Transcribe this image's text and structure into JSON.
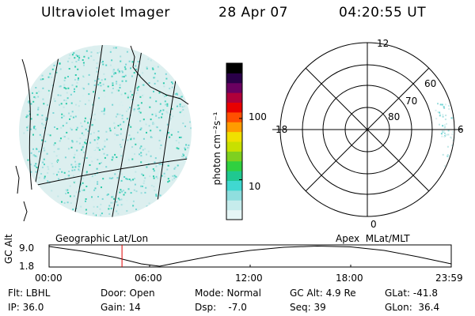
{
  "header": {
    "instrument": "Ultraviolet Imager",
    "date": "28 Apr 07",
    "time": "04:20:55 UT"
  },
  "colorbar": {
    "unit_label": "photon cm⁻²s⁻¹",
    "ticks": [
      {
        "label": "100",
        "value": 100
      },
      {
        "label": "10",
        "value": 10
      }
    ],
    "colors": [
      "#e6f6f6",
      "#c6ecec",
      "#8fdede",
      "#40d8d0",
      "#20c890",
      "#30d040",
      "#7ed020",
      "#c8e000",
      "#f0e000",
      "#ff9c00",
      "#ff5000",
      "#e80000",
      "#b0003a",
      "#6a0060",
      "#2a0048",
      "#000000"
    ]
  },
  "geo_panel": {
    "caption": "Geographic Lat/Lon"
  },
  "polar_panel": {
    "caption": "Apex  MLat/MLT",
    "mlt_labels": {
      "top": "12",
      "left": "18",
      "right": "6",
      "bottom": "0"
    },
    "lat_labels": [
      {
        "label": "60",
        "lat": 60
      },
      {
        "label": "70",
        "lat": 70
      },
      {
        "label": "80",
        "lat": 80
      }
    ]
  },
  "altitude_plot": {
    "ylabel": "GC Alt",
    "y_ticks": [
      "9.0",
      "1.8"
    ],
    "x_ticks": [
      "00:00",
      "06:00",
      "12:00",
      "18:00",
      "23:59"
    ],
    "current_time_hours": 4.35,
    "marker_color": "#e00000"
  },
  "info": {
    "flt": "Flt: LBHL",
    "ip": "IP: 36.0",
    "door": "Door: Open",
    "gain": "Gain: 14",
    "mode": "Mode: Normal",
    "dsp": "Dsp:    -7.0",
    "gcalt": "GC Alt: 4.9 Re",
    "seq": "Seq: 39",
    "glat": "GLat: -41.8",
    "glon": "GLon:  36.4"
  }
}
